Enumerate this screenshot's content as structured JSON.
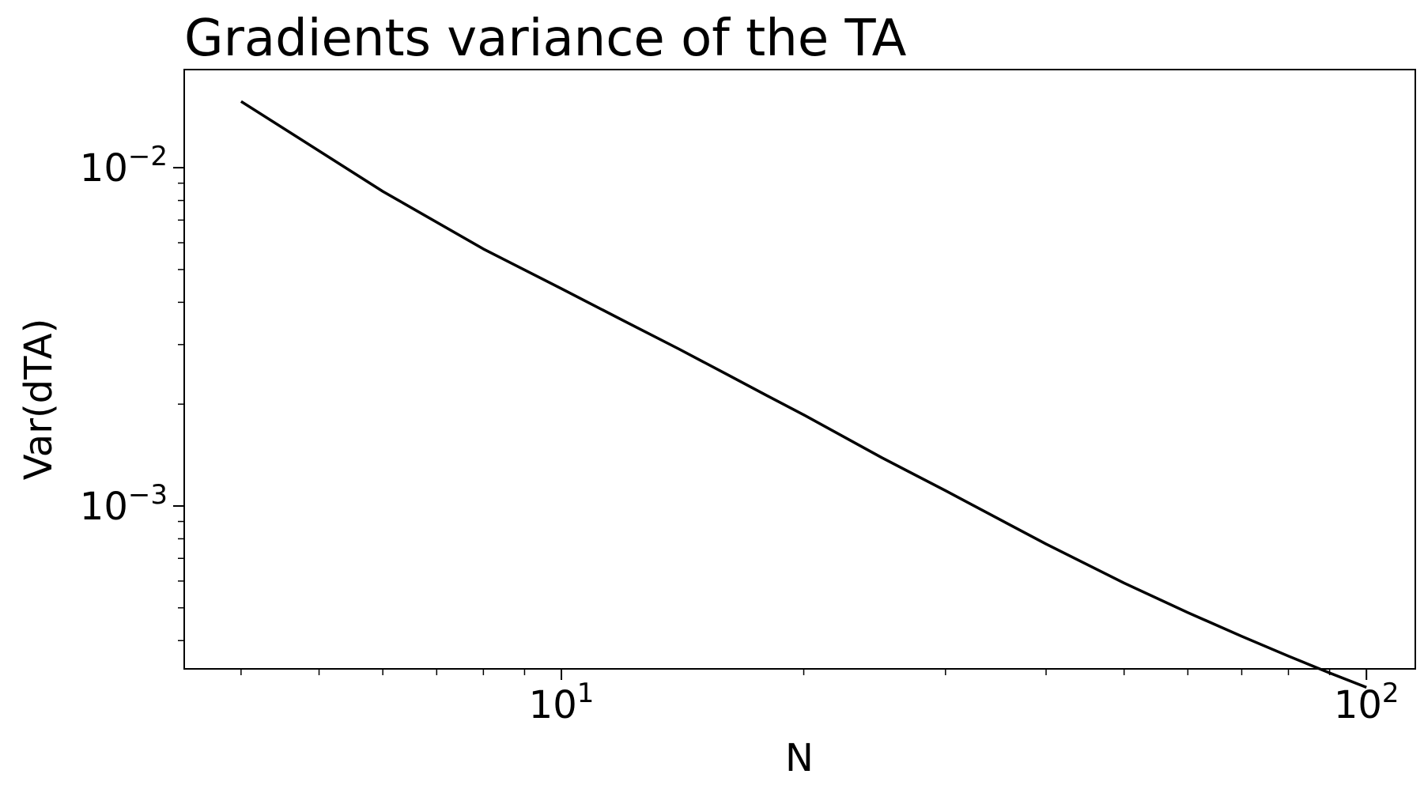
{
  "chart_data": {
    "type": "line",
    "title": "Gradients variance of the TA",
    "xlabel": "N",
    "ylabel": "Var(dTA)",
    "xscale": "log",
    "yscale": "log",
    "xlim": [
      3.4,
      115
    ],
    "ylim": [
      0.00033,
      0.0195
    ],
    "grid": false,
    "x_ticks": [
      {
        "value": 10,
        "base": "10",
        "exp": "1"
      },
      {
        "value": 100,
        "base": "10",
        "exp": "2"
      }
    ],
    "y_ticks": [
      {
        "value": 0.01,
        "base": "10",
        "exp": "−2"
      },
      {
        "value": 0.001,
        "base": "10",
        "exp": "−3"
      }
    ],
    "series": [
      {
        "color": "#000000",
        "x": [
          4,
          6,
          8,
          10,
          12,
          14,
          16,
          18,
          20,
          25,
          30,
          40,
          50,
          60,
          70,
          80,
          90,
          100
        ],
        "y": [
          0.0157,
          0.00851,
          0.00575,
          0.00439,
          0.00351,
          0.00291,
          0.00246,
          0.00212,
          0.00186,
          0.00139,
          0.00111,
          0.000772,
          0.000592,
          0.000484,
          0.000412,
          0.00036,
          0.000321,
          0.000291
        ]
      }
    ]
  }
}
